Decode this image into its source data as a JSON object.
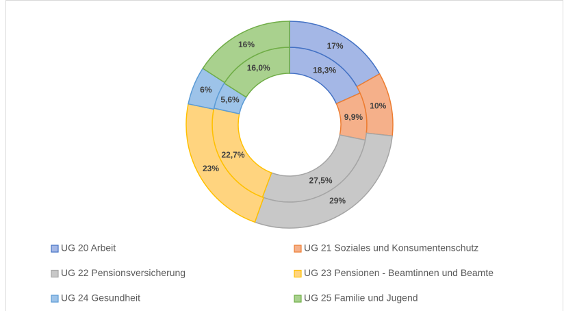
{
  "chart_data": {
    "type": "doughnut",
    "categories": [
      "UG 20 Arbeit",
      "UG 21 Soziales und Konsumentenschutz",
      "UG 22 Pensionsversicherung",
      "UG 23 Pensionen - Beamtinnen und Beamte",
      "UG 24 Gesundheit",
      "UG 25 Familie und Jugend"
    ],
    "colors": [
      "#a4b7e6",
      "#f5b08a",
      "#c8c8c8",
      "#ffd47f",
      "#9dc3e9",
      "#a9d18e"
    ],
    "edge_colors": [
      "#4472c4",
      "#ed7d31",
      "#a5a5a5",
      "#ffc000",
      "#5b9bd5",
      "#70ad47"
    ],
    "series": [
      {
        "values": [
          18.3,
          9.9,
          27.5,
          22.7,
          5.6,
          16.0
        ],
        "value_labels": [
          "18,3%",
          "9,9%",
          "27,5%",
          "22,7%",
          "5,6%",
          "16,0%"
        ]
      },
      {
        "values": [
          17,
          10,
          29,
          23,
          6,
          16
        ],
        "value_labels": [
          "17%",
          "10%",
          "29%",
          "23%",
          "6%",
          "16%"
        ]
      }
    ],
    "legend": "bottom"
  }
}
